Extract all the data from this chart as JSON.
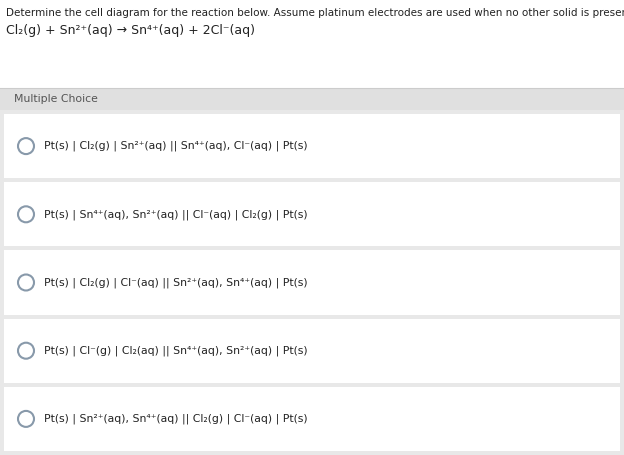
{
  "title_line1": "Determine the cell diagram for the reaction below. Assume platinum electrodes are used when no other solid is present.",
  "title_line2": "Cl₂(g) + Sn²⁺(aq) → Sn⁴⁺(aq) + 2Cl⁻(aq)",
  "section_label": "Multiple Choice",
  "choices": [
    "Pt(s) | Cl₂(g) | Sn²⁺(aq) || Sn⁴⁺(aq), Cl⁻(aq) | Pt(s)",
    "Pt(s) | Sn⁴⁺(aq), Sn²⁺(aq) || Cl⁻(aq) | Cl₂(g) | Pt(s)",
    "Pt(s) | Cl₂(g) | Cl⁻(aq) || Sn²⁺(aq), Sn⁴⁺(aq) | Pt(s)",
    "Pt(s) | Cl⁻(g) | Cl₂(aq) || Sn⁴⁺(aq), Sn²⁺(aq) | Pt(s)",
    "Pt(s) | Sn²⁺(aq), Sn⁴⁺(aq) || Cl₂(g) | Cl⁻(aq) | Pt(s)"
  ],
  "bg_color": "#e8e8e8",
  "header_bg": "#ffffff",
  "choice_bg": "#ffffff",
  "section_bg": "#e0e0e0",
  "text_color": "#222222",
  "circle_color": "#8899aa",
  "title_fontsize": 7.5,
  "equation_fontsize": 9.0,
  "choice_fontsize": 7.8,
  "section_fontsize": 7.8
}
